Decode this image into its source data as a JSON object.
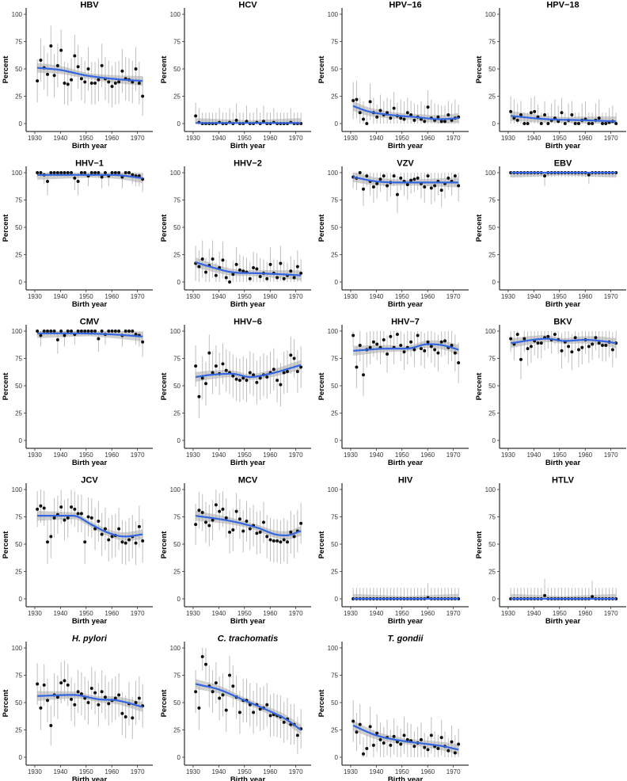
{
  "chart_data": {
    "type": "scatter",
    "x_range": [
      1931,
      1972
    ],
    "ylim": [
      0,
      100
    ],
    "x_ticks": [
      1930,
      1940,
      1950,
      1960,
      1970
    ],
    "y_ticks": [
      0,
      25,
      50,
      75,
      100
    ],
    "xlabel": "Birth year",
    "ylabel": "Percent",
    "colors": {
      "point": "#111111",
      "errorbar": "#bfbfbf",
      "smooth": "#3366e0",
      "ribbon": "#a9a9a9"
    },
    "panels": [
      {
        "title": "HBV",
        "italic": false,
        "points": [
          39,
          58,
          51,
          45,
          71,
          44,
          53,
          67,
          37,
          36,
          40,
          62,
          52,
          41,
          38,
          50,
          37,
          37,
          40,
          53,
          41,
          38,
          34,
          37,
          38,
          48,
          41,
          40,
          38,
          50,
          37,
          25
        ],
        "smooth": [
          [
            1931,
            51
          ],
          [
            1940,
            49
          ],
          [
            1950,
            44
          ],
          [
            1960,
            41
          ],
          [
            1972,
            39
          ]
        ]
      },
      {
        "title": "HCV",
        "italic": false,
        "points": [
          7,
          1,
          0,
          0,
          0,
          0,
          0,
          1,
          0,
          0,
          1,
          0,
          3,
          0,
          0,
          2,
          0,
          0,
          1,
          0,
          2,
          0,
          0,
          1,
          0,
          0,
          0,
          0,
          1,
          0,
          0,
          0
        ],
        "smooth": [
          [
            1931,
            0.5
          ],
          [
            1950,
            0.5
          ],
          [
            1972,
            0.5
          ]
        ]
      },
      {
        "title": "HPV−16",
        "italic": false,
        "points": [
          21,
          22,
          10,
          4,
          0,
          20,
          10,
          6,
          12,
          8,
          10,
          5,
          14,
          7,
          5,
          4,
          10,
          8,
          3,
          6,
          4,
          2,
          15,
          5,
          3,
          6,
          2,
          2,
          8,
          3,
          5,
          6
        ],
        "smooth": [
          [
            1931,
            16
          ],
          [
            1937,
            11
          ],
          [
            1945,
            8
          ],
          [
            1955,
            6
          ],
          [
            1965,
            4
          ],
          [
            1972,
            5
          ]
        ]
      },
      {
        "title": "HPV−18",
        "italic": false,
        "points": [
          11,
          5,
          3,
          8,
          0,
          0,
          10,
          11,
          6,
          0,
          8,
          0,
          3,
          5,
          2,
          10,
          0,
          3,
          8,
          0,
          0,
          3,
          4,
          0,
          0,
          3,
          5,
          0,
          0,
          1,
          2,
          0
        ],
        "smooth": [
          [
            1931,
            7
          ],
          [
            1945,
            4
          ],
          [
            1960,
            3
          ],
          [
            1972,
            2
          ]
        ]
      },
      {
        "title": "HHV−1",
        "italic": false,
        "points": [
          100,
          100,
          98,
          92,
          100,
          100,
          100,
          100,
          100,
          100,
          100,
          95,
          92,
          100,
          100,
          97,
          100,
          100,
          100,
          96,
          100,
          97,
          100,
          100,
          100,
          96,
          100,
          100,
          98,
          97,
          97,
          94
        ],
        "smooth": [
          [
            1931,
            98
          ],
          [
            1945,
            98
          ],
          [
            1960,
            98
          ],
          [
            1972,
            95
          ]
        ]
      },
      {
        "title": "HHV−2",
        "italic": false,
        "points": [
          17,
          14,
          21,
          9,
          15,
          21,
          6,
          13,
          20,
          4,
          0,
          7,
          16,
          11,
          10,
          9,
          3,
          13,
          12,
          5,
          8,
          3,
          16,
          8,
          4,
          17,
          3,
          6,
          10,
          4,
          14,
          8
        ],
        "smooth": [
          [
            1931,
            18
          ],
          [
            1938,
            13
          ],
          [
            1945,
            9
          ],
          [
            1955,
            8
          ],
          [
            1965,
            7
          ],
          [
            1972,
            6
          ]
        ]
      },
      {
        "title": "VZV",
        "italic": false,
        "points": [
          96,
          95,
          100,
          85,
          97,
          92,
          87,
          90,
          94,
          97,
          88,
          91,
          97,
          80,
          95,
          92,
          89,
          93,
          94,
          95,
          90,
          87,
          97,
          86,
          88,
          92,
          84,
          90,
          95,
          92,
          97,
          88
        ],
        "smooth": [
          [
            1931,
            96
          ],
          [
            1940,
            92
          ],
          [
            1955,
            91
          ],
          [
            1972,
            91
          ]
        ]
      },
      {
        "title": "EBV",
        "italic": false,
        "points": [
          100,
          100,
          100,
          100,
          100,
          100,
          100,
          100,
          100,
          100,
          97,
          100,
          100,
          100,
          100,
          100,
          100,
          100,
          100,
          100,
          100,
          100,
          100,
          98,
          100,
          100,
          100,
          100,
          100,
          100,
          100,
          100
        ],
        "smooth": [
          [
            1931,
            100
          ],
          [
            1972,
            100
          ]
        ]
      },
      {
        "title": "CMV",
        "italic": false,
        "points": [
          100,
          96,
          100,
          100,
          100,
          100,
          92,
          100,
          96,
          100,
          100,
          97,
          100,
          100,
          100,
          100,
          100,
          100,
          93,
          100,
          97,
          100,
          100,
          100,
          100,
          96,
          100,
          100,
          100,
          97,
          96,
          90
        ],
        "smooth": [
          [
            1931,
            98
          ],
          [
            1945,
            98
          ],
          [
            1960,
            97
          ],
          [
            1972,
            95
          ]
        ]
      },
      {
        "title": "HHV−6",
        "italic": false,
        "points": [
          68,
          40,
          57,
          52,
          80,
          62,
          68,
          61,
          70,
          64,
          62,
          59,
          56,
          55,
          57,
          55,
          62,
          60,
          53,
          57,
          60,
          58,
          62,
          65,
          55,
          51,
          62,
          63,
          78,
          75,
          63,
          67
        ],
        "smooth": [
          [
            1931,
            58
          ],
          [
            1937,
            60
          ],
          [
            1945,
            61
          ],
          [
            1952,
            58
          ],
          [
            1960,
            61
          ],
          [
            1972,
            69
          ]
        ]
      },
      {
        "title": "HHV−7",
        "italic": false,
        "points": [
          96,
          67,
          87,
          60,
          83,
          85,
          90,
          88,
          85,
          92,
          79,
          95,
          85,
          97,
          87,
          81,
          85,
          90,
          83,
          96,
          84,
          82,
          90,
          86,
          83,
          80,
          90,
          91,
          85,
          87,
          80,
          71
        ],
        "smooth": [
          [
            1931,
            82
          ],
          [
            1945,
            84
          ],
          [
            1952,
            84
          ],
          [
            1960,
            88
          ],
          [
            1966,
            87
          ],
          [
            1972,
            83
          ]
        ]
      },
      {
        "title": "BKV",
        "italic": false,
        "points": [
          93,
          88,
          97,
          74,
          93,
          84,
          86,
          91,
          89,
          89,
          94,
          95,
          92,
          97,
          92,
          82,
          90,
          86,
          81,
          94,
          83,
          85,
          92,
          86,
          88,
          94,
          89,
          87,
          87,
          90,
          83,
          89
        ],
        "smooth": [
          [
            1931,
            89
          ],
          [
            1945,
            93
          ],
          [
            1952,
            91
          ],
          [
            1960,
            92
          ],
          [
            1966,
            91
          ],
          [
            1972,
            89
          ]
        ]
      },
      {
        "title": "JCV",
        "italic": false,
        "points": [
          82,
          85,
          83,
          52,
          57,
          74,
          77,
          84,
          72,
          74,
          84,
          82,
          78,
          78,
          52,
          75,
          74,
          64,
          71,
          59,
          64,
          54,
          57,
          58,
          64,
          52,
          51,
          54,
          57,
          51,
          66,
          53
        ],
        "smooth": [
          [
            1931,
            76
          ],
          [
            1945,
            76
          ],
          [
            1952,
            68
          ],
          [
            1958,
            61
          ],
          [
            1965,
            57
          ],
          [
            1972,
            59
          ]
        ]
      },
      {
        "title": "MCV",
        "italic": false,
        "points": [
          68,
          81,
          79,
          70,
          67,
          72,
          86,
          80,
          82,
          74,
          61,
          63,
          80,
          73,
          62,
          71,
          64,
          67,
          60,
          61,
          70,
          57,
          54,
          53,
          53,
          52,
          54,
          52,
          61,
          57,
          62,
          69
        ],
        "smooth": [
          [
            1931,
            76
          ],
          [
            1945,
            71
          ],
          [
            1955,
            65
          ],
          [
            1962,
            59
          ],
          [
            1966,
            58
          ],
          [
            1972,
            62
          ]
        ]
      },
      {
        "title": "HIV",
        "italic": false,
        "points": [
          0,
          0,
          0,
          0,
          0,
          0,
          0,
          0,
          0,
          0,
          0,
          0,
          0,
          0,
          0,
          0,
          0,
          0,
          0,
          0,
          0,
          0,
          1,
          0,
          0,
          0,
          0,
          0,
          0,
          0,
          0,
          0
        ],
        "smooth": [
          [
            1931,
            0
          ],
          [
            1972,
            0
          ]
        ]
      },
      {
        "title": "HTLV",
        "italic": false,
        "points": [
          0,
          0,
          0,
          0,
          0,
          0,
          0,
          0,
          0,
          0,
          3,
          0,
          0,
          0,
          0,
          0,
          0,
          0,
          0,
          0,
          0,
          0,
          0,
          0,
          2,
          0,
          0,
          0,
          0,
          0,
          0,
          0
        ],
        "smooth": [
          [
            1931,
            0
          ],
          [
            1972,
            0
          ]
        ]
      },
      {
        "title": "H. pylori",
        "italic": true,
        "points": [
          67,
          45,
          66,
          52,
          29,
          57,
          55,
          68,
          70,
          66,
          53,
          48,
          60,
          58,
          54,
          50,
          63,
          59,
          48,
          60,
          55,
          49,
          52,
          54,
          57,
          40,
          37,
          49,
          36,
          50,
          54,
          47
        ],
        "smooth": [
          [
            1931,
            56
          ],
          [
            1945,
            57
          ],
          [
            1955,
            53
          ],
          [
            1962,
            52
          ],
          [
            1972,
            46
          ]
        ]
      },
      {
        "title": "C. trachomatis",
        "italic": true,
        "points": [
          60,
          45,
          92,
          85,
          65,
          60,
          68,
          54,
          57,
          43,
          75,
          65,
          55,
          41,
          52,
          52,
          48,
          41,
          48,
          44,
          45,
          48,
          38,
          39,
          38,
          37,
          32,
          35,
          30,
          30,
          20,
          26
        ],
        "smooth": [
          [
            1931,
            67
          ],
          [
            1940,
            62
          ],
          [
            1950,
            52
          ],
          [
            1960,
            42
          ],
          [
            1966,
            35
          ],
          [
            1972,
            25
          ]
        ]
      },
      {
        "title": "T. gondii",
        "italic": true,
        "points": [
          33,
          23,
          30,
          3,
          8,
          28,
          11,
          22,
          16,
          13,
          18,
          11,
          19,
          14,
          12,
          20,
          16,
          15,
          10,
          13,
          16,
          9,
          7,
          20,
          10,
          8,
          18,
          10,
          6,
          14,
          4,
          12
        ],
        "smooth": [
          [
            1931,
            29
          ],
          [
            1940,
            20
          ],
          [
            1950,
            15
          ],
          [
            1960,
            12
          ],
          [
            1966,
            10
          ],
          [
            1972,
            7
          ]
        ]
      }
    ]
  }
}
